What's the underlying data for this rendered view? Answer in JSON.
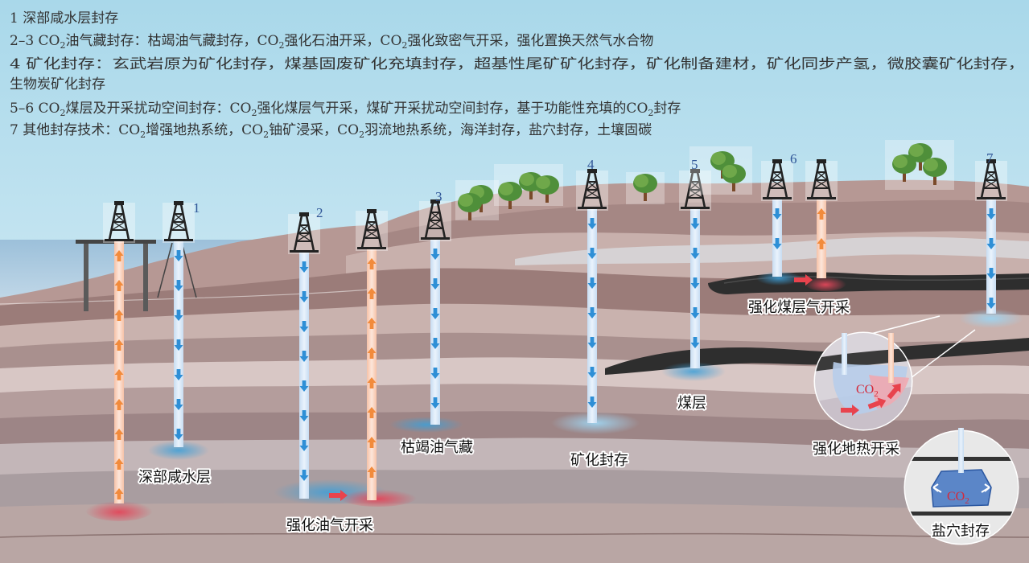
{
  "legend": {
    "line1": "1 深部咸水层封存",
    "line2a": "2–3 CO",
    "line2b": "油气藏封存：枯竭油气藏封存，CO",
    "line2c": "强化石油开采，CO",
    "line2d": "强化致密气开采，强化置换天然气水合物",
    "line3": "4 矿化封存：玄武岩原为矿化封存，煤基固废矿化充填封存，超基性尾矿矿化封存，矿化制备建材，矿化同步产氢，微胶囊矿化封存，",
    "line4": "生物炭矿化封存",
    "line5a": "5–6 CO",
    "line5b": "煤层及开采扰动空间封存：CO",
    "line5c": "强化煤层气开采，煤矿开采扰动空间封存，基于功能性充填的CO",
    "line5d": "封存",
    "line6a": "7 其他封存技术：CO",
    "line6b": "增强地热系统，CO",
    "line6c": "铀矿浸采，CO",
    "line6d": "羽流地热系统，海洋封存，盐穴封存，土壤固碳",
    "sub": "2"
  },
  "well_numbers": [
    "1",
    "2",
    "3",
    "4",
    "5",
    "6",
    "7"
  ],
  "labels": {
    "saline_aquifer": "深部咸水层",
    "eor": "强化油气开采",
    "depleted_reservoir": "枯竭油气藏",
    "mineralization": "矿化封存",
    "coal_seam": "煤层",
    "ecbm": "强化煤层气开采",
    "geothermal": "强化地热开采",
    "salt_cavern": "盐穴封存"
  },
  "co2": {
    "main": "CO",
    "sub": "2"
  },
  "colors": {
    "sky": "#cfe8f3",
    "sea": "#a9c9e0",
    "strata_light": "#d9c5c2",
    "strata_mid": "#a98a86",
    "strata_dark": "#8a6e6b",
    "coal": "#2e2e2e",
    "injection": "#2e8fd6",
    "production": "#f28b3c",
    "tree_green": "#6fa84a"
  },
  "icons": [
    "derrick-icon",
    "tree-icon",
    "down-arrow-icon",
    "up-arrow-icon",
    "right-arrow-icon"
  ]
}
